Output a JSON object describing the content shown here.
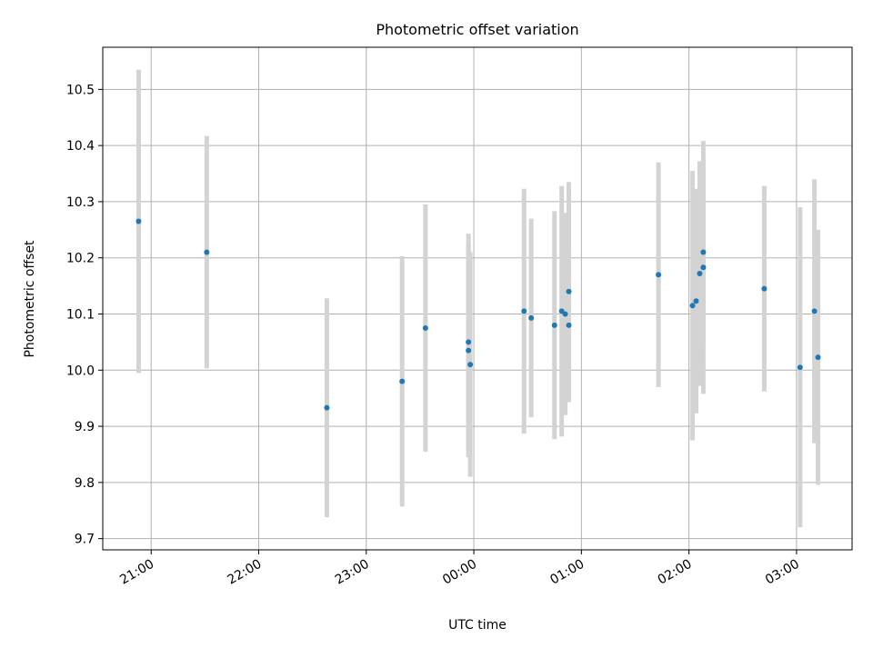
{
  "colors": {
    "point": "#1f77b4",
    "errorbar": "#d3d3d3",
    "grid": "#b0b0b0",
    "axis": "#000000"
  },
  "chart_data": {
    "type": "scatter",
    "title": "Photometric offset variation",
    "xlabel": "UTC time",
    "ylabel": "Photometric offset",
    "x_is_time": true,
    "xlim": [
      "20:33",
      "03:31"
    ],
    "ylim": [
      9.68,
      10.575
    ],
    "grid": true,
    "x_ticks": [
      "21:00",
      "22:00",
      "23:00",
      "00:00",
      "01:00",
      "02:00",
      "03:00"
    ],
    "y_ticks": [
      "9.7",
      "9.8",
      "9.9",
      "10.0",
      "10.1",
      "10.2",
      "10.3",
      "10.4",
      "10.5"
    ],
    "series": [
      {
        "points": [
          {
            "x": "20:53",
            "y": 10.265,
            "err": 0.27
          },
          {
            "x": "21:31",
            "y": 10.21,
            "err": 0.207
          },
          {
            "x": "22:38",
            "y": 9.933,
            "err": 0.195
          },
          {
            "x": "23:20",
            "y": 9.98,
            "err": 0.223
          },
          {
            "x": "23:33",
            "y": 10.075,
            "err": 0.22
          },
          {
            "x": "23:57",
            "y": 10.05,
            "err": 0.193
          },
          {
            "x": "23:57",
            "y": 10.035,
            "err": 0.19
          },
          {
            "x": "23:58",
            "y": 10.01,
            "err": 0.2
          },
          {
            "x": "00:28",
            "y": 10.105,
            "err": 0.218
          },
          {
            "x": "00:32",
            "y": 10.093,
            "err": 0.177
          },
          {
            "x": "00:45",
            "y": 10.08,
            "err": 0.203
          },
          {
            "x": "00:49",
            "y": 10.105,
            "err": 0.223
          },
          {
            "x": "00:51",
            "y": 10.1,
            "err": 0.18
          },
          {
            "x": "00:53",
            "y": 10.08,
            "err": 0.137
          },
          {
            "x": "00:53",
            "y": 10.14,
            "err": 0.195
          },
          {
            "x": "01:43",
            "y": 10.17,
            "err": 0.2
          },
          {
            "x": "02:02",
            "y": 10.115,
            "err": 0.24
          },
          {
            "x": "02:04",
            "y": 10.123,
            "err": 0.2
          },
          {
            "x": "02:06",
            "y": 10.172,
            "err": 0.2
          },
          {
            "x": "02:08",
            "y": 10.21,
            "err": 0.165
          },
          {
            "x": "02:08",
            "y": 10.183,
            "err": 0.225
          },
          {
            "x": "02:42",
            "y": 10.145,
            "err": 0.183
          },
          {
            "x": "03:02",
            "y": 10.005,
            "err": 0.285
          },
          {
            "x": "03:10",
            "y": 10.105,
            "err": 0.235
          },
          {
            "x": "03:12",
            "y": 10.023,
            "err": 0.227
          }
        ]
      }
    ]
  }
}
